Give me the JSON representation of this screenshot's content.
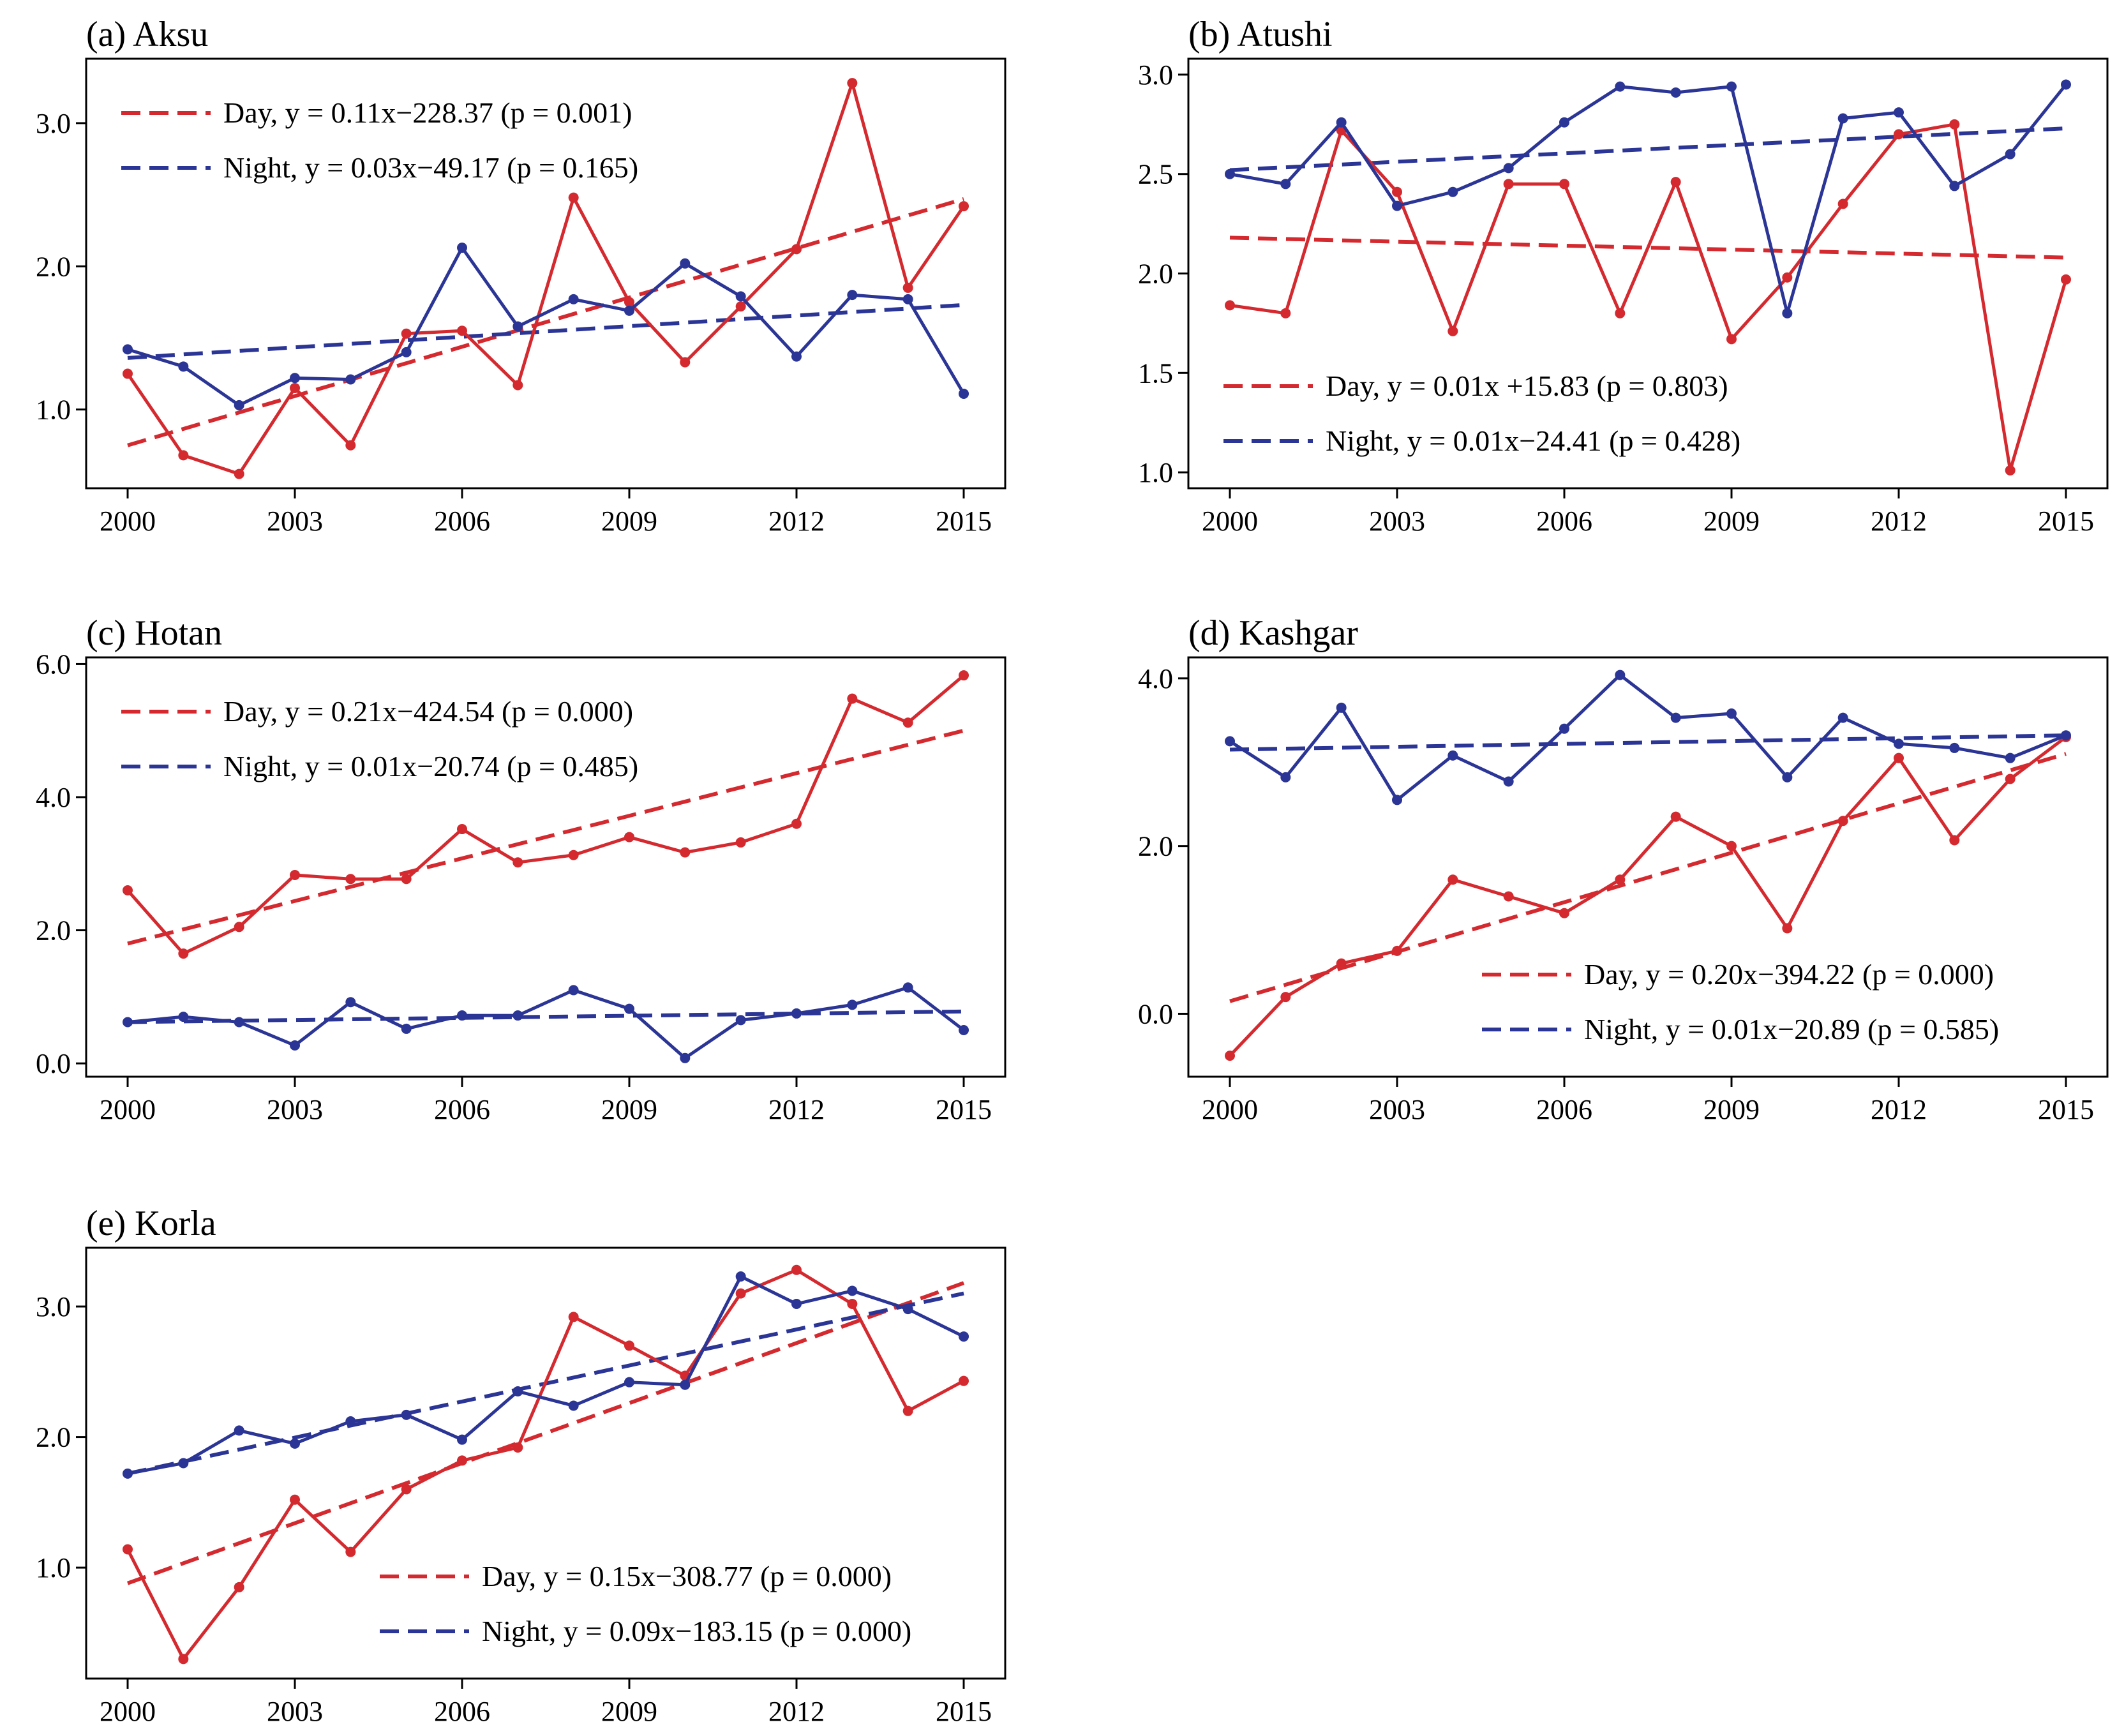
{
  "chart_data": [
    {
      "type": "line",
      "title": "(a) Aksu",
      "x": [
        2000,
        2001,
        2002,
        2003,
        2004,
        2005,
        2006,
        2007,
        2008,
        2009,
        2010,
        2011,
        2012,
        2013,
        2014,
        2015
      ],
      "xticks": [
        2000,
        2003,
        2006,
        2009,
        2012,
        2015
      ],
      "xtick_labels": [
        "2000",
        "2003",
        "2006",
        "2009",
        "2012",
        "2015"
      ],
      "ylim": [
        0.45,
        3.45
      ],
      "yticks": [
        1.0,
        2.0,
        3.0
      ],
      "ytick_labels": [
        "1.0",
        "2.0",
        "3.0"
      ],
      "legend_position": "top-left",
      "series": [
        {
          "name": "Day",
          "color": "#d42a2f",
          "values": [
            1.25,
            0.68,
            0.55,
            1.15,
            0.75,
            1.53,
            1.55,
            1.17,
            2.48,
            1.75,
            1.33,
            1.72,
            2.12,
            3.28,
            1.85,
            2.42
          ]
        },
        {
          "name": "Night",
          "color": "#2b3595",
          "values": [
            1.42,
            1.3,
            1.03,
            1.22,
            1.21,
            1.4,
            2.13,
            1.58,
            1.77,
            1.69,
            2.02,
            1.79,
            1.37,
            1.8,
            1.77,
            1.11
          ]
        }
      ],
      "trends": [
        {
          "label": "Day, y = 0.11x−228.37 (p = 0.001)",
          "color": "#d42a2f",
          "start": 0.75,
          "end": 2.47
        },
        {
          "label": "Night, y = 0.03x−49.17 (p = 0.165)",
          "color": "#2b3595",
          "start": 1.36,
          "end": 1.73
        }
      ]
    },
    {
      "type": "line",
      "title": "(b) Atushi",
      "x": [
        2000,
        2001,
        2002,
        2003,
        2004,
        2005,
        2006,
        2007,
        2008,
        2009,
        2010,
        2011,
        2012,
        2013,
        2014,
        2015
      ],
      "xticks": [
        2000,
        2003,
        2006,
        2009,
        2012,
        2015
      ],
      "xtick_labels": [
        "2000",
        "2003",
        "2006",
        "2009",
        "2012",
        "2015"
      ],
      "ylim": [
        0.92,
        3.08
      ],
      "yticks": [
        1.0,
        1.5,
        2.0,
        2.5,
        3.0
      ],
      "ytick_labels": [
        "1.0",
        "1.5",
        "2.0",
        "2.5",
        "3.0"
      ],
      "legend_position": "bottom-left",
      "series": [
        {
          "name": "Day",
          "color": "#d42a2f",
          "values": [
            1.84,
            1.8,
            2.72,
            2.41,
            1.71,
            2.45,
            2.45,
            1.8,
            2.46,
            1.67,
            1.98,
            2.35,
            2.7,
            2.75,
            1.01,
            1.97
          ]
        },
        {
          "name": "Night",
          "color": "#2b3595",
          "values": [
            2.5,
            2.45,
            2.76,
            2.34,
            2.41,
            2.53,
            2.76,
            2.94,
            2.91,
            2.94,
            1.8,
            2.78,
            2.81,
            2.44,
            2.6,
            2.95
          ]
        }
      ],
      "trends": [
        {
          "label": "Day, y = 0.01x +15.83 (p = 0.803)",
          "color": "#d42a2f",
          "start": 2.18,
          "end": 2.08
        },
        {
          "label": "Night, y = 0.01x−24.41 (p = 0.428)",
          "color": "#2b3595",
          "start": 2.52,
          "end": 2.73
        }
      ]
    },
    {
      "type": "line",
      "title": "(c) Hotan",
      "x": [
        2000,
        2001,
        2002,
        2003,
        2004,
        2005,
        2006,
        2007,
        2008,
        2009,
        2010,
        2011,
        2012,
        2013,
        2014,
        2015
      ],
      "xticks": [
        2000,
        2003,
        2006,
        2009,
        2012,
        2015
      ],
      "xtick_labels": [
        "2000",
        "2003",
        "2006",
        "2009",
        "2012",
        "2015"
      ],
      "ylim": [
        -0.2,
        6.1
      ],
      "yticks": [
        0.0,
        2.0,
        4.0,
        6.0
      ],
      "ytick_labels": [
        "0.0",
        "2.0",
        "4.0",
        "6.0"
      ],
      "legend_position": "top-left",
      "series": [
        {
          "name": "Day",
          "color": "#d42a2f",
          "values": [
            2.6,
            1.65,
            2.05,
            2.83,
            2.77,
            2.77,
            3.52,
            3.02,
            3.13,
            3.4,
            3.17,
            3.32,
            3.6,
            5.48,
            5.12,
            5.83
          ]
        },
        {
          "name": "Night",
          "color": "#2b3595",
          "values": [
            0.62,
            0.7,
            0.62,
            0.27,
            0.92,
            0.52,
            0.72,
            0.72,
            1.1,
            0.82,
            0.08,
            0.65,
            0.75,
            0.88,
            1.14,
            0.5
          ]
        }
      ],
      "trends": [
        {
          "label": "Day, y = 0.21x−424.54 (p = 0.000)",
          "color": "#d42a2f",
          "start": 1.8,
          "end": 5.0
        },
        {
          "label": "Night, y = 0.01x−20.74 (p = 0.485)",
          "color": "#2b3595",
          "start": 0.62,
          "end": 0.78
        }
      ]
    },
    {
      "type": "line",
      "title": "(d) Kashgar",
      "x": [
        2000,
        2001,
        2002,
        2003,
        2004,
        2005,
        2006,
        2007,
        2008,
        2009,
        2010,
        2011,
        2012,
        2013,
        2014,
        2015
      ],
      "xticks": [
        2000,
        2003,
        2006,
        2009,
        2012,
        2015
      ],
      "xtick_labels": [
        "2000",
        "2003",
        "2006",
        "2009",
        "2012",
        "2015"
      ],
      "ylim": [
        -0.75,
        4.25
      ],
      "yticks": [
        0.0,
        2.0,
        4.0
      ],
      "ytick_labels": [
        "0.0",
        "2.0",
        "4.0"
      ],
      "legend_position": "bottom-right",
      "series": [
        {
          "name": "Day",
          "color": "#d42a2f",
          "values": [
            -0.5,
            0.2,
            0.6,
            0.75,
            1.6,
            1.4,
            1.2,
            1.6,
            2.35,
            2.0,
            1.02,
            2.3,
            3.05,
            2.07,
            2.8,
            3.3
          ]
        },
        {
          "name": "Night",
          "color": "#2b3595",
          "values": [
            3.25,
            2.82,
            3.65,
            2.55,
            3.08,
            2.77,
            3.4,
            4.04,
            3.53,
            3.58,
            2.82,
            3.53,
            3.22,
            3.17,
            3.05,
            3.32
          ]
        }
      ],
      "trends": [
        {
          "label": "Day, y = 0.20x−394.22 (p = 0.000)",
          "color": "#d42a2f",
          "start": 0.15,
          "end": 3.1
        },
        {
          "label": "Night, y = 0.01x−20.89 (p = 0.585)",
          "color": "#2b3595",
          "start": 3.15,
          "end": 3.32
        }
      ]
    },
    {
      "type": "line",
      "title": "(e) Korla",
      "x": [
        2000,
        2001,
        2002,
        2003,
        2004,
        2005,
        2006,
        2007,
        2008,
        2009,
        2010,
        2011,
        2012,
        2013,
        2014,
        2015
      ],
      "xticks": [
        2000,
        2003,
        2006,
        2009,
        2012,
        2015
      ],
      "xtick_labels": [
        "2000",
        "2003",
        "2006",
        "2009",
        "2012",
        "2015"
      ],
      "ylim": [
        0.15,
        3.45
      ],
      "yticks": [
        1.0,
        2.0,
        3.0
      ],
      "ytick_labels": [
        "1.0",
        "2.0",
        "3.0"
      ],
      "legend_position": "bottom-right",
      "series": [
        {
          "name": "Day",
          "color": "#d42a2f",
          "values": [
            1.14,
            0.3,
            0.85,
            1.52,
            1.12,
            1.6,
            1.82,
            1.92,
            2.92,
            2.7,
            2.47,
            3.1,
            3.28,
            3.02,
            2.2,
            2.43
          ]
        },
        {
          "name": "Night",
          "color": "#2b3595",
          "values": [
            1.72,
            1.8,
            2.05,
            1.95,
            2.12,
            2.17,
            1.98,
            2.35,
            2.24,
            2.42,
            2.4,
            3.23,
            3.02,
            3.12,
            2.98,
            2.77
          ]
        }
      ],
      "trends": [
        {
          "label": "Day, y = 0.15x−308.77 (p = 0.000)",
          "color": "#d42a2f",
          "start": 0.88,
          "end": 3.18
        },
        {
          "label": "Night, y = 0.09x−183.15 (p = 0.000)",
          "color": "#2b3595",
          "start": 1.72,
          "end": 3.1
        }
      ]
    }
  ]
}
